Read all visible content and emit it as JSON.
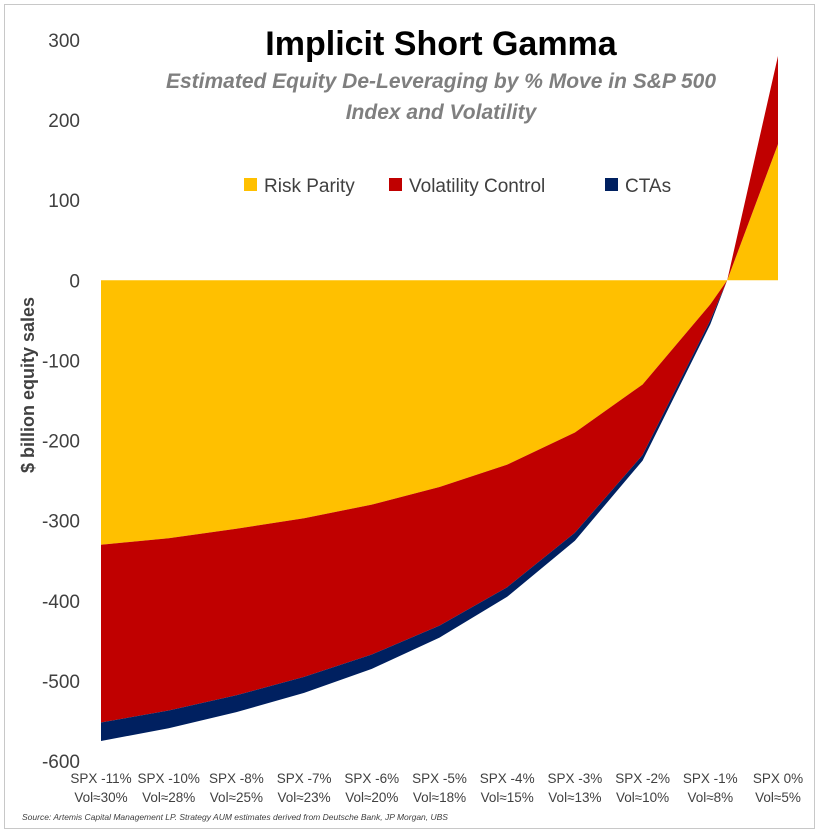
{
  "chart_data": {
    "type": "area",
    "stacked": true,
    "title": "Implicit Short Gamma",
    "subtitle_lines": [
      "Estimated Equity De-Leveraging by % Move in S&P 500",
      "Index and Volatility"
    ],
    "ylabel": "$ billion equity sales",
    "xlabel": "",
    "ylim": [
      -600,
      300
    ],
    "yticks": [
      300,
      200,
      100,
      0,
      -100,
      -200,
      -300,
      -400,
      -500,
      -600
    ],
    "categories": [
      [
        "SPX -11%",
        "Vol≈30%"
      ],
      [
        "SPX -10%",
        "Vol≈28%"
      ],
      [
        "SPX -8%",
        "Vol≈25%"
      ],
      [
        "SPX -7%",
        "Vol≈23%"
      ],
      [
        "SPX -6%",
        "Vol≈20%"
      ],
      [
        "SPX -5%",
        "Vol≈18%"
      ],
      [
        "SPX -4%",
        "Vol≈15%"
      ],
      [
        "SPX -3%",
        "Vol≈13%"
      ],
      [
        "SPX -2%",
        "Vol≈10%"
      ],
      [
        "SPX -1%",
        "Vol≈8%"
      ],
      [
        "SPX 0%",
        "Vol≈5%"
      ]
    ],
    "series": [
      {
        "name": "Risk Parity",
        "color": "#ffc000",
        "values": [
          -330,
          -322,
          -310,
          -297,
          -280,
          -258,
          -230,
          -190,
          -130,
          -30,
          170
        ]
      },
      {
        "name": "Volatility Control",
        "color": "#c00000",
        "values": [
          -222,
          -215,
          -208,
          -198,
          -187,
          -173,
          -153,
          -125,
          -88,
          -20,
          110
        ]
      },
      {
        "name": "CTAs",
        "color": "#002060",
        "values": [
          -23,
          -22,
          -21,
          -20,
          -18,
          -15,
          -12,
          -10,
          -7,
          -5,
          0
        ]
      }
    ],
    "zero_crossing_index": 9.25,
    "grid": false,
    "legend_position": "top-center"
  },
  "source_note": "Source: Artemis Capital Management LP. Strategy AUM estimates derived from Deutsche Bank, JP Morgan, UBS"
}
